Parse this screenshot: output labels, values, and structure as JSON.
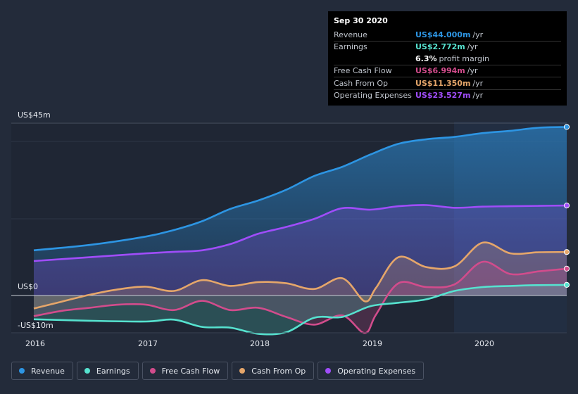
{
  "chart_data": {
    "type": "area",
    "title": "",
    "ylim": [
      -10,
      45
    ],
    "yticks": [
      "US$45m",
      "US$0",
      "-US$10m"
    ],
    "xticks": [
      "2016",
      "2017",
      "2018",
      "2019",
      "2020"
    ],
    "tooltip": {
      "date": "Sep 30 2020",
      "rows": [
        {
          "label": "Revenue",
          "value": "US$44.000m",
          "unit": "/yr",
          "color": "#2d95e3"
        },
        {
          "label": "Earnings",
          "value": "US$2.772m",
          "unit": "/yr",
          "color": "#56e2cf"
        },
        {
          "label": "",
          "value": "6.3%",
          "unit": "profit margin",
          "color": "#ffffff"
        },
        {
          "label": "Free Cash Flow",
          "value": "US$6.994m",
          "unit": "/yr",
          "color": "#d24c8c"
        },
        {
          "label": "Cash From Op",
          "value": "US$11.350m",
          "unit": "/yr",
          "color": "#e5a66a"
        },
        {
          "label": "Operating Expenses",
          "value": "US$23.527m",
          "unit": "/yr",
          "color": "#a04dfa"
        }
      ]
    },
    "series": [
      {
        "name": "Revenue",
        "color": "#2d95e3",
        "x": [
          2016.0,
          2016.5,
          2017.0,
          2017.25,
          2017.5,
          2017.75,
          2018.0,
          2018.25,
          2018.5,
          2018.75,
          2019.0,
          2019.25,
          2019.5,
          2019.75,
          2020.0,
          2020.25,
          2020.5,
          2020.75
        ],
        "y": [
          11.8,
          13.2,
          15.4,
          17.1,
          19.4,
          22.6,
          24.8,
          27.6,
          31.2,
          33.6,
          36.8,
          39.6,
          40.8,
          41.4,
          42.4,
          43.0,
          43.8,
          44.0
        ]
      },
      {
        "name": "Operating Expenses",
        "color": "#a04dfa",
        "x": [
          2016.0,
          2016.5,
          2017.0,
          2017.25,
          2017.5,
          2017.75,
          2018.0,
          2018.25,
          2018.5,
          2018.75,
          2019.0,
          2019.25,
          2019.5,
          2019.75,
          2020.0,
          2020.25,
          2020.5,
          2020.75
        ],
        "y": [
          9.0,
          10.0,
          11.0,
          11.4,
          11.8,
          13.4,
          16.1,
          17.9,
          20.0,
          22.8,
          22.4,
          23.3,
          23.6,
          22.9,
          23.2,
          23.3,
          23.4,
          23.5
        ]
      },
      {
        "name": "Cash From Op",
        "color": "#e5a66a",
        "x": [
          2016.0,
          2016.25,
          2016.5,
          2016.75,
          2017.0,
          2017.25,
          2017.5,
          2017.75,
          2018.0,
          2018.25,
          2018.5,
          2018.75,
          2018.95,
          2019.05,
          2019.25,
          2019.5,
          2019.75,
          2020.0,
          2020.25,
          2020.5,
          2020.75
        ],
        "y": [
          -3.4,
          -1.6,
          0.2,
          1.6,
          2.3,
          1.2,
          4.0,
          2.5,
          3.5,
          3.2,
          1.7,
          4.5,
          -1.5,
          2.0,
          10.0,
          7.4,
          7.6,
          13.8,
          11.0,
          11.3,
          11.35
        ]
      },
      {
        "name": "Free Cash Flow",
        "color": "#d24c8c",
        "x": [
          2016.0,
          2016.25,
          2016.5,
          2016.75,
          2017.0,
          2017.25,
          2017.5,
          2017.75,
          2018.0,
          2018.25,
          2018.5,
          2018.75,
          2018.95,
          2019.05,
          2019.25,
          2019.5,
          2019.75,
          2020.0,
          2020.25,
          2020.5,
          2020.75
        ],
        "y": [
          -5.4,
          -4.0,
          -3.2,
          -2.4,
          -2.4,
          -3.8,
          -1.4,
          -3.8,
          -3.2,
          -5.6,
          -7.6,
          -5.2,
          -9.8,
          -5.0,
          3.2,
          2.2,
          2.9,
          8.8,
          5.6,
          6.3,
          7.0
        ]
      },
      {
        "name": "Earnings",
        "color": "#56e2cf",
        "x": [
          2016.0,
          2016.5,
          2017.0,
          2017.25,
          2017.5,
          2017.75,
          2018.0,
          2018.25,
          2018.5,
          2018.75,
          2019.0,
          2019.25,
          2019.5,
          2019.75,
          2020.0,
          2020.25,
          2020.5,
          2020.75
        ],
        "y": [
          -6.2,
          -6.6,
          -6.8,
          -6.3,
          -8.2,
          -8.4,
          -10.0,
          -9.6,
          -5.8,
          -5.6,
          -2.8,
          -1.9,
          -1.0,
          1.2,
          2.2,
          2.5,
          2.7,
          2.772
        ]
      }
    ]
  },
  "legend": [
    {
      "label": "Revenue",
      "color": "#2d95e3"
    },
    {
      "label": "Earnings",
      "color": "#56e2cf"
    },
    {
      "label": "Free Cash Flow",
      "color": "#d24c8c"
    },
    {
      "label": "Cash From Op",
      "color": "#e5a66a"
    },
    {
      "label": "Operating Expenses",
      "color": "#a04dfa"
    }
  ]
}
